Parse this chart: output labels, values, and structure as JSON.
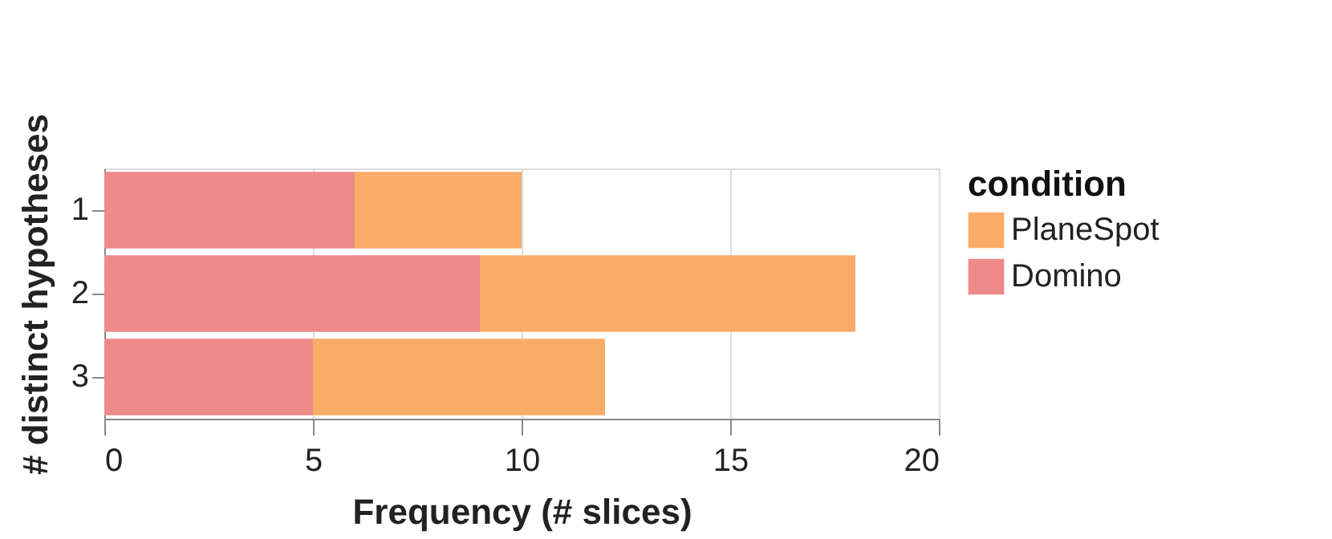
{
  "chart_data": {
    "type": "bar",
    "orientation": "horizontal",
    "stacked": true,
    "xlabel": "Frequency (# slices)",
    "ylabel": "# distinct hypotheses",
    "legend_title": "condition",
    "legend": "right",
    "grid": "x",
    "categories": [
      "1",
      "2",
      "3"
    ],
    "series": [
      {
        "name": "Domino",
        "color": "#ee8a8a",
        "values": [
          6,
          9,
          5
        ]
      },
      {
        "name": "PlaneSpot",
        "color": "#f9ac68",
        "values": [
          4,
          9,
          7
        ]
      }
    ],
    "xlim": [
      0,
      20
    ],
    "xticks": [
      0,
      5,
      10,
      15,
      20
    ]
  }
}
